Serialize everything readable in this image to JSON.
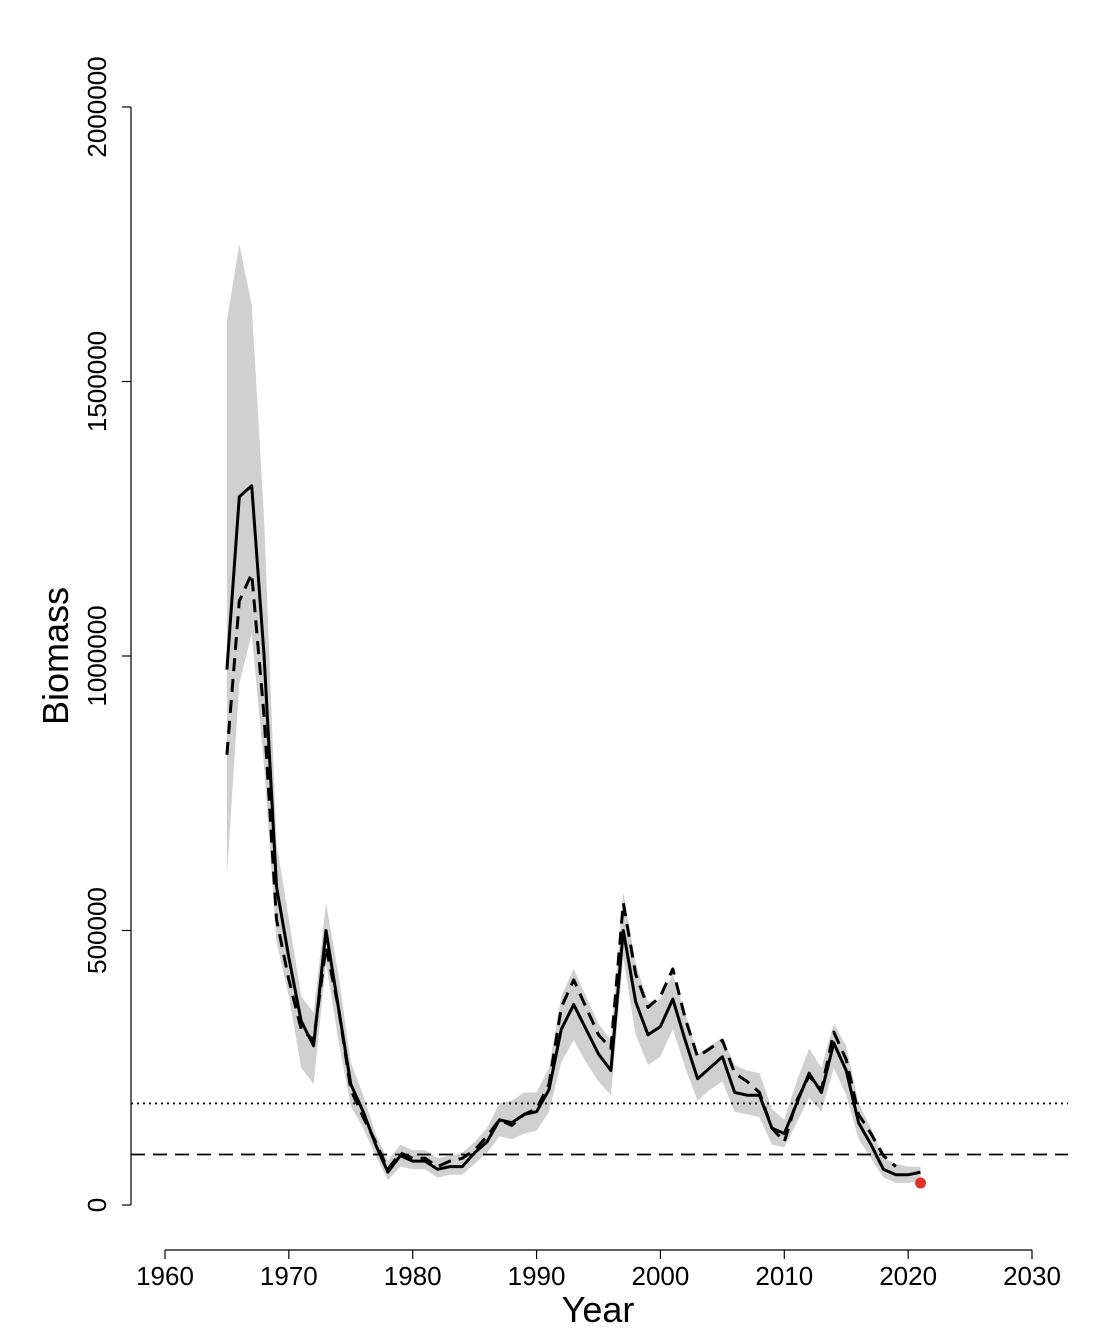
{
  "chart_data": {
    "type": "line",
    "title": "",
    "xlabel": "Year",
    "ylabel": "Biomass",
    "xlim": [
      1960,
      2030
    ],
    "ylim": [
      0,
      2000000
    ],
    "x_ticks": [
      1960,
      1970,
      1980,
      1990,
      2000,
      2010,
      2020,
      2030
    ],
    "y_ticks": [
      0,
      500000,
      1000000,
      1500000,
      2000000
    ],
    "x_tick_labels": [
      "1960",
      "1970",
      "1980",
      "1990",
      "2000",
      "2010",
      "2020",
      "2030"
    ],
    "y_tick_labels": [
      "0",
      "500000",
      "1000000",
      "1500000",
      "2000000"
    ],
    "grid": false,
    "legend": "none",
    "series": [
      {
        "style": "solid",
        "color": "#000000",
        "x": [
          1965,
          1966,
          1967,
          1968,
          1969,
          1970,
          1971,
          1972,
          1973,
          1974,
          1975,
          1976,
          1977,
          1978,
          1979,
          1980,
          1981,
          1982,
          1983,
          1984,
          1985,
          1986,
          1987,
          1988,
          1989,
          1990,
          1991,
          1992,
          1993,
          1994,
          1995,
          1996,
          1997,
          1998,
          1999,
          2000,
          2001,
          2002,
          2003,
          2004,
          2005,
          2006,
          2007,
          2008,
          2009,
          2010,
          2011,
          2012,
          2013,
          2014,
          2015,
          2016,
          2017,
          2018,
          2019,
          2020,
          2021
        ],
        "y": [
          975000,
          1290000,
          1310000,
          1000000,
          580000,
          450000,
          335000,
          290000,
          500000,
          360000,
          220000,
          170000,
          110000,
          60000,
          90000,
          80000,
          80000,
          65000,
          70000,
          70000,
          95000,
          115000,
          155000,
          150000,
          165000,
          170000,
          210000,
          320000,
          365000,
          320000,
          275000,
          245000,
          500000,
          370000,
          310000,
          325000,
          375000,
          300000,
          230000,
          250000,
          270000,
          205000,
          200000,
          200000,
          140000,
          130000,
          185000,
          240000,
          205000,
          295000,
          245000,
          150000,
          110000,
          65000,
          55000,
          55000,
          60000
        ]
      },
      {
        "style": "dashed",
        "color": "#000000",
        "x": [
          1965,
          1966,
          1967,
          1968,
          1969,
          1970,
          1971,
          1972,
          1973,
          1974,
          1975,
          1976,
          1977,
          1978,
          1979,
          1980,
          1981,
          1982,
          1983,
          1984,
          1985,
          1986,
          1987,
          1988,
          1989,
          1990,
          1991,
          1992,
          1993,
          1994,
          1995,
          1996,
          1997,
          1998,
          1999,
          2000,
          2001,
          2002,
          2003,
          2004,
          2005,
          2006,
          2007,
          2008,
          2009,
          2010,
          2011,
          2012,
          2013,
          2014,
          2015,
          2016,
          2017,
          2018,
          2019
        ],
        "y": [
          820000,
          1100000,
          1150000,
          890000,
          520000,
          410000,
          320000,
          300000,
          470000,
          360000,
          210000,
          160000,
          115000,
          65000,
          95000,
          85000,
          85000,
          70000,
          80000,
          85000,
          100000,
          125000,
          155000,
          145000,
          165000,
          175000,
          220000,
          360000,
          410000,
          360000,
          310000,
          285000,
          550000,
          420000,
          360000,
          380000,
          430000,
          340000,
          270000,
          285000,
          300000,
          240000,
          225000,
          205000,
          140000,
          115000,
          190000,
          235000,
          210000,
          315000,
          265000,
          165000,
          130000,
          90000,
          70000
        ]
      }
    ],
    "band": {
      "color": "#d0d0d0",
      "x": [
        1965,
        1966,
        1967,
        1968,
        1969,
        1970,
        1971,
        1972,
        1973,
        1974,
        1975,
        1976,
        1977,
        1978,
        1979,
        1980,
        1981,
        1982,
        1983,
        1984,
        1985,
        1986,
        1987,
        1988,
        1989,
        1990,
        1991,
        1992,
        1993,
        1994,
        1995,
        1996,
        1997,
        1998,
        1999,
        2000,
        2001,
        2002,
        2003,
        2004,
        2005,
        2006,
        2007,
        2008,
        2009,
        2010,
        2011,
        2012,
        2013,
        2014,
        2015,
        2016,
        2017,
        2018,
        2019,
        2020,
        2021
      ],
      "upper": [
        1610000,
        1750000,
        1640000,
        1250000,
        660000,
        520000,
        380000,
        350000,
        550000,
        420000,
        260000,
        200000,
        130000,
        80000,
        110000,
        100000,
        100000,
        85000,
        90000,
        95000,
        115000,
        140000,
        185000,
        190000,
        205000,
        205000,
        250000,
        380000,
        430000,
        380000,
        330000,
        300000,
        570000,
        440000,
        370000,
        375000,
        420000,
        350000,
        275000,
        290000,
        305000,
        255000,
        245000,
        240000,
        175000,
        155000,
        225000,
        285000,
        250000,
        330000,
        290000,
        185000,
        140000,
        85000,
        75000,
        70000,
        70000
      ],
      "lower": [
        600000,
        950000,
        1040000,
        800000,
        480000,
        380000,
        250000,
        220000,
        440000,
        300000,
        180000,
        140000,
        90000,
        45000,
        70000,
        65000,
        65000,
        50000,
        55000,
        55000,
        75000,
        95000,
        125000,
        120000,
        130000,
        135000,
        170000,
        260000,
        300000,
        260000,
        225000,
        200000,
        450000,
        310000,
        255000,
        270000,
        320000,
        250000,
        190000,
        210000,
        225000,
        170000,
        165000,
        160000,
        110000,
        105000,
        150000,
        195000,
        170000,
        250000,
        200000,
        120000,
        85000,
        50000,
        40000,
        40000,
        45000
      ]
    },
    "reference_lines": [
      {
        "style": "dotted",
        "y": 185000
      },
      {
        "style": "dashed",
        "y": 92000
      }
    ],
    "points": [
      {
        "x": 2021,
        "y": 40000,
        "color": "#e0322b"
      }
    ]
  }
}
